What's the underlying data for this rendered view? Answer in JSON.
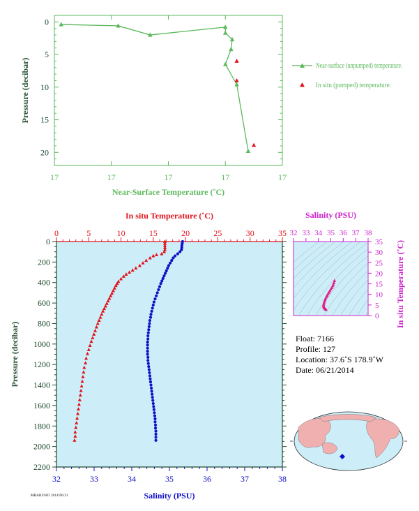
{
  "chart_data": [
    {
      "type": "line",
      "xlabel": "Near-Surface Temperature (˚C)",
      "ylabel": "Pressure (decibar)",
      "x_tick_labels": [
        "17",
        "17",
        "17",
        "17",
        "17"
      ],
      "y_ticks": [
        0,
        5,
        10,
        15,
        20
      ],
      "ylim": [
        22,
        -1
      ],
      "legend_placement": "right",
      "series": [
        {
          "name": "Near-surface (unpumped) temperature.",
          "color": "#5cb85c",
          "marker": "triangle",
          "points": [
            [
              0.12,
              0.4
            ],
            [
              1.12,
              0.6
            ],
            [
              1.68,
              2.0
            ],
            [
              3.0,
              0.8
            ],
            [
              3.0,
              1.7
            ],
            [
              3.12,
              2.7
            ],
            [
              3.1,
              4.2
            ],
            [
              3.0,
              6.5
            ],
            [
              3.2,
              9.6
            ],
            [
              3.4,
              19.8
            ]
          ]
        },
        {
          "name": "In situ (pumped) temperature.",
          "color": "#e0141c",
          "marker": "triangle",
          "points": [
            [
              3.2,
              6.0
            ],
            [
              3.2,
              9.0
            ],
            [
              3.5,
              18.9
            ]
          ]
        }
      ]
    },
    {
      "type": "scatter",
      "x_top_label": "In situ Temperature (˚C)",
      "xlabel": "Salinity (PSU)",
      "ylabel": "Pressure (decibar)",
      "x_top_ticks": [
        0,
        5,
        10,
        15,
        20,
        25,
        30,
        35
      ],
      "x_ticks": [
        32,
        33,
        34,
        35,
        36,
        37,
        38
      ],
      "y_ticks": [
        0,
        200,
        400,
        600,
        800,
        1000,
        1200,
        1400,
        1600,
        1800,
        2000,
        2200
      ],
      "ylim": [
        2200,
        0
      ],
      "background": "#cdeef8",
      "series": [
        {
          "name": "In situ Temperature (˚C)",
          "color": "#e0141c",
          "marker": "triangle",
          "axis": "top",
          "points": [
            [
              16.8,
              0
            ],
            [
              16.8,
              20
            ],
            [
              16.8,
              40
            ],
            [
              16.8,
              60
            ],
            [
              16.8,
              80
            ],
            [
              16.7,
              100
            ],
            [
              16.3,
              120
            ],
            [
              15.5,
              130
            ],
            [
              15,
              140
            ],
            [
              14.5,
              160
            ],
            [
              13.9,
              185
            ],
            [
              13.4,
              210
            ],
            [
              12.9,
              235
            ],
            [
              12.3,
              260
            ],
            [
              11.8,
              280
            ],
            [
              11.3,
              300
            ],
            [
              10.8,
              320
            ],
            [
              10.4,
              340
            ],
            [
              10.0,
              365
            ],
            [
              9.6,
              390
            ],
            [
              9.4,
              410
            ],
            [
              9.2,
              430
            ],
            [
              9.0,
              455
            ],
            [
              8.8,
              480
            ],
            [
              8.6,
              505
            ],
            [
              8.4,
              530
            ],
            [
              8.2,
              555
            ],
            [
              8.0,
              580
            ],
            [
              7.8,
              605
            ],
            [
              7.6,
              630
            ],
            [
              7.4,
              655
            ],
            [
              7.2,
              680
            ],
            [
              7.0,
              710
            ],
            [
              6.8,
              740
            ],
            [
              6.6,
              770
            ],
            [
              6.4,
              800
            ],
            [
              6.2,
              835
            ],
            [
              6.0,
              870
            ],
            [
              5.8,
              905
            ],
            [
              5.6,
              940
            ],
            [
              5.4,
              975
            ],
            [
              5.2,
              1015
            ],
            [
              5.0,
              1055
            ],
            [
              4.8,
              1095
            ],
            [
              4.6,
              1140
            ],
            [
              4.5,
              1185
            ],
            [
              4.3,
              1230
            ],
            [
              4.2,
              1275
            ],
            [
              4.1,
              1320
            ],
            [
              4.0,
              1365
            ],
            [
              3.9,
              1410
            ],
            [
              3.8,
              1455
            ],
            [
              3.7,
              1500
            ],
            [
              3.6,
              1545
            ],
            [
              3.5,
              1590
            ],
            [
              3.4,
              1635
            ],
            [
              3.3,
              1680
            ],
            [
              3.2,
              1725
            ],
            [
              3.1,
              1770
            ],
            [
              3.0,
              1815
            ],
            [
              2.9,
              1860
            ],
            [
              2.9,
              1900
            ],
            [
              2.8,
              1940
            ]
          ]
        },
        {
          "name": "Salinity (PSU)",
          "color": "#1010c8",
          "marker": "circle",
          "axis": "bottom",
          "points": [
            [
              35.35,
              0
            ],
            [
              35.34,
              20
            ],
            [
              35.33,
              40
            ],
            [
              35.33,
              60
            ],
            [
              35.32,
              80
            ],
            [
              35.28,
              100
            ],
            [
              35.22,
              120
            ],
            [
              35.15,
              140
            ],
            [
              35.1,
              160
            ],
            [
              35.06,
              185
            ],
            [
              35.02,
              210
            ],
            [
              34.98,
              235
            ],
            [
              34.95,
              260
            ],
            [
              34.92,
              285
            ],
            [
              34.89,
              310
            ],
            [
              34.86,
              335
            ],
            [
              34.83,
              360
            ],
            [
              34.8,
              385
            ],
            [
              34.77,
              410
            ],
            [
              34.74,
              440
            ],
            [
              34.71,
              470
            ],
            [
              34.68,
              500
            ],
            [
              34.65,
              530
            ],
            [
              34.62,
              560
            ],
            [
              34.59,
              590
            ],
            [
              34.57,
              620
            ],
            [
              34.55,
              650
            ],
            [
              34.53,
              680
            ],
            [
              34.51,
              710
            ],
            [
              34.5,
              740
            ],
            [
              34.48,
              770
            ],
            [
              34.47,
              800
            ],
            [
              34.46,
              830
            ],
            [
              34.45,
              860
            ],
            [
              34.44,
              890
            ],
            [
              34.43,
              920
            ],
            [
              34.43,
              950
            ],
            [
              34.42,
              980
            ],
            [
              34.42,
              1010
            ],
            [
              34.42,
              1040
            ],
            [
              34.42,
              1070
            ],
            [
              34.42,
              1100
            ],
            [
              34.43,
              1130
            ],
            [
              34.43,
              1160
            ],
            [
              34.44,
              1190
            ],
            [
              34.45,
              1220
            ],
            [
              34.46,
              1250
            ],
            [
              34.47,
              1280
            ],
            [
              34.48,
              1310
            ],
            [
              34.49,
              1340
            ],
            [
              34.5,
              1370
            ],
            [
              34.51,
              1400
            ],
            [
              34.52,
              1430
            ],
            [
              34.53,
              1460
            ],
            [
              34.54,
              1490
            ],
            [
              34.55,
              1520
            ],
            [
              34.56,
              1550
            ],
            [
              34.57,
              1580
            ],
            [
              34.58,
              1610
            ],
            [
              34.59,
              1640
            ],
            [
              34.6,
              1670
            ],
            [
              34.61,
              1700
            ],
            [
              34.62,
              1730
            ],
            [
              34.62,
              1760
            ],
            [
              34.63,
              1790
            ],
            [
              34.63,
              1820
            ],
            [
              34.64,
              1850
            ],
            [
              34.64,
              1880
            ],
            [
              34.64,
              1910
            ],
            [
              34.64,
              1940
            ]
          ]
        }
      ]
    },
    {
      "type": "scatter",
      "xlabel": "Salinity (PSU)",
      "ylabel": "In situ Temperature (˚C)",
      "x_ticks": [
        32,
        33,
        34,
        35,
        36,
        37,
        38
      ],
      "y_ticks": [
        0,
        5,
        10,
        15,
        20,
        25,
        30,
        35
      ],
      "xlim": [
        32,
        38
      ],
      "ylim": [
        0,
        35
      ],
      "color": "#e0208c",
      "points": [
        [
          35.3,
          16.5
        ],
        [
          35.25,
          15.5
        ],
        [
          35.2,
          14.7
        ],
        [
          35.15,
          14
        ],
        [
          35.08,
          13.2
        ],
        [
          35.0,
          12.5
        ],
        [
          34.92,
          11.7
        ],
        [
          34.84,
          10.9
        ],
        [
          34.77,
          10.2
        ],
        [
          34.7,
          9.5
        ],
        [
          34.64,
          8.8
        ],
        [
          34.58,
          8.1
        ],
        [
          34.53,
          7.4
        ],
        [
          34.49,
          6.7
        ],
        [
          34.46,
          6.0
        ],
        [
          34.43,
          5.3
        ],
        [
          34.42,
          4.7
        ],
        [
          34.43,
          4.2
        ],
        [
          34.46,
          3.7
        ],
        [
          34.52,
          3.3
        ],
        [
          34.58,
          3.0
        ],
        [
          34.62,
          2.8
        ]
      ]
    }
  ],
  "float_info": {
    "float": "Float:  7166",
    "profile": "Profile:  127",
    "location": "Location:  37.6˚S  178.9˚W",
    "date": "Date:  06/21/2014"
  },
  "footer": "MBARI/SIO 2014/06/21",
  "colors": {
    "green": "#5cb85c",
    "red": "#e0141c",
    "blue": "#1010c8",
    "magenta": "#cc22cc",
    "pink": "#e0208c",
    "axis_dark": "#1c4a2a",
    "plot_bg": "#cdeef8"
  }
}
